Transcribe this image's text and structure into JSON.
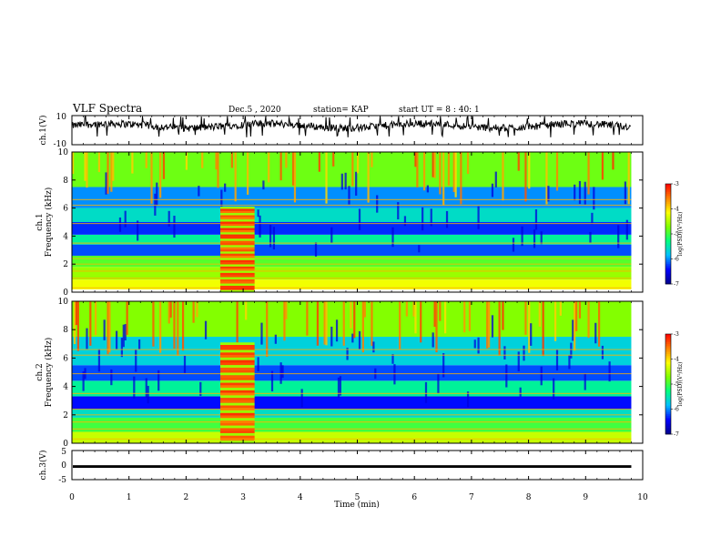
{
  "header": {
    "title": "VLF Spectra",
    "date": "Dec.5 , 2020",
    "station": "station= KAP",
    "start": "start  UT =  8 : 40: 1"
  },
  "chart_data": [
    {
      "type": "line",
      "panel": "ch1-waveform",
      "ylabel": "ch.1(V)",
      "ylim": [
        -10,
        10
      ],
      "yticks": [
        "10",
        "-10"
      ],
      "x_unit": "min",
      "x_range": [
        0,
        9.8
      ],
      "series": [
        {
          "color": "#000000",
          "approx_level": 3,
          "fluctuation": [
            -5,
            10
          ]
        }
      ]
    },
    {
      "type": "heatmap",
      "panel": "ch1-spectrogram",
      "ylabel": "ch.1\nFrequency (kHz)",
      "ylim": [
        0,
        10
      ],
      "yticks": [
        "10",
        "8",
        "6",
        "4",
        "2",
        "0"
      ],
      "xlim": [
        0,
        10
      ],
      "colorbar": {
        "label": "log(PSD)(V²/Hz)",
        "range": [
          -7,
          -3
        ],
        "ticks": [
          "-3",
          "-4",
          "-5",
          "-6",
          "-7"
        ]
      },
      "colormap": [
        "#00008b",
        "#0000ff",
        "#00bfff",
        "#00ff80",
        "#80ff00",
        "#ffff00",
        "#ff8000",
        "#ff0000"
      ],
      "data_extent_min": [
        0,
        9.8
      ],
      "interference_block": {
        "t_start_min": 2.6,
        "t_end_min": 3.2,
        "freq_khz": [
          0,
          6.1
        ]
      },
      "bands_khz": [
        {
          "f": [
            0.2,
            0.9
          ],
          "level": -4.2
        },
        {
          "f": [
            0.9,
            1.8
          ],
          "level": -4.6
        },
        {
          "f": [
            1.8,
            2.6
          ],
          "level": -4.9
        },
        {
          "f": [
            2.6,
            3.4
          ],
          "level": -6.2
        },
        {
          "f": [
            3.4,
            4.1
          ],
          "level": -5.4
        },
        {
          "f": [
            4.1,
            5.0
          ],
          "level": -6.3
        },
        {
          "f": [
            5.0,
            6.0
          ],
          "level": -5.6
        },
        {
          "f": [
            6.0,
            7.5
          ],
          "level": -6.0
        },
        {
          "f": [
            7.5,
            10.0
          ],
          "level": -4.8
        }
      ]
    },
    {
      "type": "heatmap",
      "panel": "ch2-spectrogram",
      "ylabel": "ch.2\nFrequency (kHz)",
      "ylim": [
        0,
        10
      ],
      "yticks": [
        "10",
        "8",
        "6",
        "4",
        "2",
        "0"
      ],
      "xlim": [
        0,
        10
      ],
      "colorbar": {
        "label": "log(PSD)(V²/Hz)",
        "range": [
          -7,
          -3
        ],
        "ticks": [
          "-3",
          "-4",
          "-5",
          "-6",
          "-7"
        ]
      },
      "colormap": [
        "#00008b",
        "#0000ff",
        "#00bfff",
        "#00ff80",
        "#80ff00",
        "#ffff00",
        "#ff8000",
        "#ff0000"
      ],
      "data_extent_min": [
        0,
        9.8
      ],
      "interference_block": {
        "t_start_min": 2.6,
        "t_end_min": 3.2,
        "freq_khz": [
          0,
          7.1
        ]
      },
      "bands_khz": [
        {
          "f": [
            0.0,
            0.8
          ],
          "level": -4.4
        },
        {
          "f": [
            0.8,
            1.8
          ],
          "level": -5.0
        },
        {
          "f": [
            1.8,
            2.4
          ],
          "level": -5.6
        },
        {
          "f": [
            2.4,
            3.3
          ],
          "level": -6.4
        },
        {
          "f": [
            3.3,
            4.4
          ],
          "level": -5.4
        },
        {
          "f": [
            4.4,
            5.5
          ],
          "level": -6.2
        },
        {
          "f": [
            5.5,
            7.5
          ],
          "level": -5.7
        },
        {
          "f": [
            7.5,
            10.0
          ],
          "level": -4.7
        }
      ]
    },
    {
      "type": "line",
      "panel": "ch3-waveform",
      "ylabel": "ch.3(V)",
      "ylim": [
        -5,
        5
      ],
      "yticks": [
        "5",
        "0",
        "-5"
      ],
      "series": [
        {
          "color": "#000000",
          "value": -0.5,
          "thickness_v": 0.9
        }
      ],
      "xlabel": "Time (min)",
      "xlim": [
        0,
        10
      ],
      "xticks": [
        "0",
        "1",
        "2",
        "3",
        "4",
        "5",
        "6",
        "7",
        "8",
        "9",
        "10"
      ]
    }
  ]
}
